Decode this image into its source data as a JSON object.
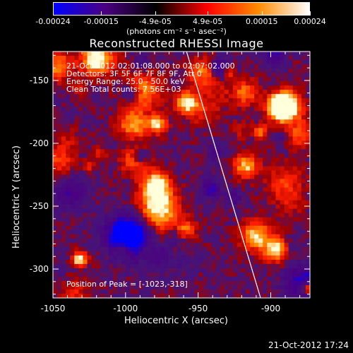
{
  "colorbar": {
    "ticks": [
      "-0.00024",
      "-0.00015",
      "-4.9e-05",
      "4.9e-05",
      "0.00015",
      "0.00024"
    ],
    "tick_values": [
      -0.00024,
      -0.00015,
      -4.9e-05,
      4.9e-05,
      0.00015,
      0.00024
    ],
    "units": "(photons cm⁻² s⁻¹ asec⁻²)",
    "range": [
      -0.00024,
      0.00024
    ],
    "stops": [
      "#0000ff",
      "#4b0082",
      "#000000",
      "#ff0000",
      "#ff8c00",
      "#ffffff"
    ]
  },
  "title": "Reconstructed RHESSI Image",
  "annotations": {
    "time_range": "21-Oct-2012 02:01:08.000 to 02:07:02.000",
    "detectors": "Detectors: 3F 5F 6F 7F 8F 9F, Att 0",
    "energy": "Energy Range: 25.0 - 50.0 keV",
    "clean": "Clean     Total counts: 7.56E+03",
    "peak": "Position of Peak = [-1023,-318]"
  },
  "axes": {
    "xlabel": "Heliocentric X (arcsec)",
    "ylabel": "Heliocentric Y (arcsec)",
    "x_ticks": [
      "-1050",
      "-1000",
      "-950",
      "-900"
    ],
    "x_tick_values": [
      -1050,
      -1000,
      -950,
      -900
    ],
    "y_ticks": [
      "-150",
      "-200",
      "-250",
      "-300"
    ],
    "y_tick_values": [
      -150,
      -200,
      -250,
      -300
    ],
    "xlim": [
      -1050,
      -873
    ],
    "ylim": [
      -323,
      -127
    ]
  },
  "limb": {
    "x_start": -958,
    "y_start": -127,
    "x_end": -907,
    "y_end": -323
  },
  "footer": "21-Oct-2012 17:24"
}
